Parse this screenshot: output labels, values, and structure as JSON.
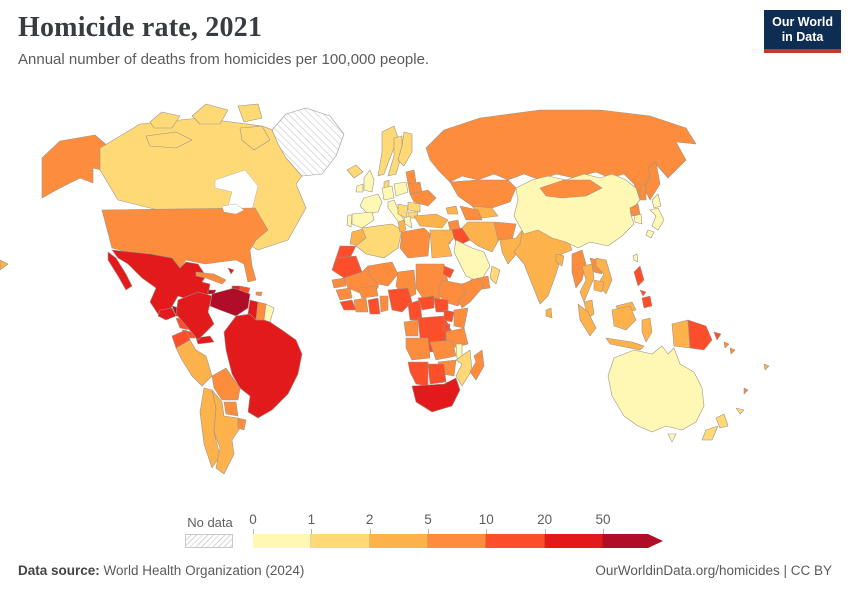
{
  "header": {
    "title": "Homicide rate, 2021",
    "subtitle": "Annual number of deaths from homicides per 100,000 people."
  },
  "logo": {
    "line1": "Our World",
    "line2": "in Data",
    "bg": "#0d2d52",
    "accent": "#c9342c"
  },
  "legend": {
    "no_data_label": "No data",
    "ticks": [
      "0",
      "1",
      "2",
      "5",
      "10",
      "20",
      "50"
    ]
  },
  "footer": {
    "source_label": "Data source:",
    "source_text": " World Health Organization (2024)",
    "link_text": "OurWorldinData.org/homicides | CC BY"
  },
  "chart_data": {
    "type": "choropleth_map",
    "title": "Homicide rate, 2021",
    "unit": "deaths from homicides per 100,000 people",
    "legend_position": "bottom",
    "no_data_label": "No data",
    "bins": [
      {
        "label": "0-1",
        "color": "#FEF8B4"
      },
      {
        "label": "1-2",
        "color": "#FED976"
      },
      {
        "label": "2-5",
        "color": "#FEB24C"
      },
      {
        "label": "5-10",
        "color": "#FD8D3C"
      },
      {
        "label": "10-20",
        "color": "#FC4E2A"
      },
      {
        "label": "20-50",
        "color": "#E31A1C"
      },
      {
        "label": "50+",
        "color": "#B00D28"
      }
    ],
    "countries": {
      "greenland": "no-data",
      "canada": "1-2",
      "united-states": "5-10",
      "mexico": "20-50",
      "guatemala": "20-50",
      "honduras": "50+",
      "nicaragua": "10-20",
      "costa-rica": "10-20",
      "panama": "20-50",
      "cuba": "5-10",
      "jamaica": "50+",
      "haiti": "20-50",
      "dominican-republic": "10-20",
      "puerto-rico": "5-10",
      "bahamas": "20-50",
      "colombia": "20-50",
      "venezuela": "50+",
      "guyana": "20-50",
      "suriname": "5-10",
      "french-guiana": "0-1",
      "ecuador": "10-20",
      "peru": "2-5",
      "brazil": "20-50",
      "bolivia": "5-10",
      "paraguay": "5-10",
      "chile": "2-5",
      "argentina": "2-5",
      "uruguay": "5-10",
      "iceland": "1-2",
      "united-kingdom": "0-1",
      "ireland": "0-1",
      "norway": "1-2",
      "sweden": "1-2",
      "finland": "1-2",
      "denmark": "1-2",
      "france": "0-1",
      "spain": "0-1",
      "portugal": "0-1",
      "germany": "0-1",
      "italy": "0-1",
      "poland": "0-1",
      "baltic-states": "5-10",
      "belarus": "5-10",
      "ukraine": "5-10",
      "romania": "1-2",
      "bulgaria": "1-2",
      "balkans": "1-2",
      "greece": "0-1",
      "russia": "5-10",
      "kazakhstan": "5-10",
      "uzbekistan": "2-5",
      "turkmenistan": "5-10",
      "caucasus": "2-5",
      "turkey": "2-5",
      "syria": "5-10",
      "iraq": "10-20",
      "iran": "2-5",
      "saudi-arabia": "0-1",
      "yemen": "5-10",
      "oman": "1-2",
      "jordan": "2-5",
      "afghanistan": "5-10",
      "pakistan": "2-5",
      "india": "2-5",
      "bangladesh": "2-5",
      "sri-lanka": "2-5",
      "china": "0-1",
      "mongolia": "5-10",
      "north-korea": "5-10",
      "south-korea": "0-1",
      "japan": "0-1",
      "taiwan": "0-1",
      "myanmar": "5-10",
      "thailand": "2-5",
      "laos": "5-10",
      "vietnam": "2-5",
      "cambodia": "2-5",
      "malaysia": "2-5",
      "indonesia": "2-5",
      "philippines": "10-20",
      "papua-new-guinea": "10-20",
      "solomon-islands": "5-10",
      "vanuatu": "5-10",
      "fiji": "2-5",
      "new-caledonia": "1-2",
      "australia": "0-1",
      "new-zealand": "1-2",
      "morocco": "2-5",
      "western-sahara": "10-20",
      "mauritania": "10-20",
      "mali": "5-10",
      "algeria": "1-2",
      "tunisia": "2-5",
      "libya": "5-10",
      "egypt": "2-5",
      "niger": "5-10",
      "chad": "5-10",
      "sudan": "5-10",
      "eritrea": "10-20",
      "ethiopia": "5-10",
      "somalia": "5-10",
      "senegal": "5-10",
      "guinea": "5-10",
      "sierra-leone": "10-20",
      "ivory-coast": "5-10",
      "ghana": "10-20",
      "togo-benin": "5-10",
      "burkina-faso": "5-10",
      "nigeria": "10-20",
      "cameroon": "10-20",
      "central-african-republic": "10-20",
      "south-sudan": "10-20",
      "congo": "5-10",
      "democratic-republic-of-congo": "10-20",
      "uganda": "10-20",
      "kenya": "5-10",
      "rwanda-burundi": "10-20",
      "tanzania": "5-10",
      "angola": "5-10",
      "zambia": "5-10",
      "malawi": "0-1",
      "mozambique": "1-2",
      "zimbabwe": "5-10",
      "namibia": "10-20",
      "botswana": "10-20",
      "south-africa": "20-50",
      "madagascar": "5-10"
    }
  }
}
